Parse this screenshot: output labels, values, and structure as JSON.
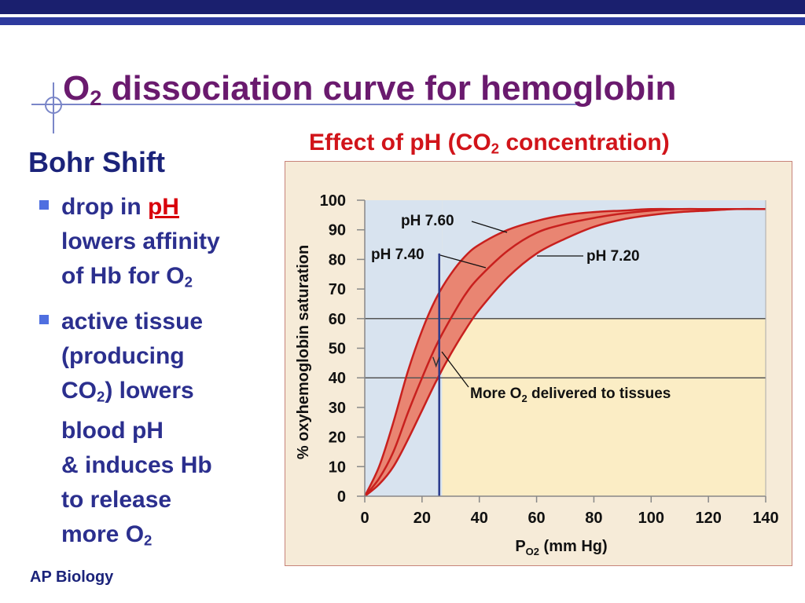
{
  "slide": {
    "title_main": "O",
    "title_sub": "2",
    "title_rest": " dissociation curve for hemoglobin",
    "bohr_heading": "Bohr Shift",
    "footer": "AP Biology"
  },
  "bullets": [
    {
      "pre": "drop in ",
      "highlight": "pH",
      "line2": "lowers affinity",
      "line3_pre": "of Hb for O",
      "line3_sub": "2"
    },
    {
      "l1": "active tissue",
      "l2": "(producing",
      "l3_pre": "CO",
      "l3_sub": "2",
      "l3_post": ") lowers",
      "l4": "blood pH",
      "l5": "& induces Hb",
      "l6": "to release",
      "l7_pre": "more O",
      "l7_sub": "2"
    }
  ],
  "colors": {
    "title": "#6a1a6e",
    "heading": "#1b237a",
    "bullet_text": "#2b2f8e",
    "highlight": "#d8000b",
    "chart_title": "#d1141a",
    "curve": "#c8201e",
    "band": "#e98572",
    "plot_bg_blue": "#d8e3ef",
    "plot_bg_cream": "#fbedc5",
    "marker_line": "#2b3a8c"
  },
  "chart_data": {
    "type": "line",
    "title_pre": "Effect of pH (CO",
    "title_sub": "2",
    "title_post": " concentration)",
    "ylabel": "% oxyhemoglobin saturation",
    "xlabel_pre": "P",
    "xlabel_sub": "O2",
    "xlabel_post": " (mm Hg)",
    "xlim": [
      0,
      140
    ],
    "ylim": [
      0,
      100
    ],
    "x_ticks": [
      0,
      20,
      40,
      60,
      80,
      100,
      120,
      140
    ],
    "y_ticks": [
      0,
      10,
      20,
      30,
      40,
      50,
      60,
      70,
      80,
      90,
      100
    ],
    "hgrid_at": [
      40,
      60
    ],
    "blue_region_x_max": 27,
    "blue_region_y_min": 60,
    "marker_x": 26,
    "series": [
      {
        "name": "pH 7.60",
        "x": [
          0,
          5,
          10,
          15,
          20,
          25,
          30,
          35,
          40,
          50,
          60,
          70,
          80,
          90,
          100,
          110,
          120,
          130,
          140
        ],
        "y": [
          0,
          10,
          25,
          42,
          56,
          67,
          75,
          81,
          85,
          90,
          93,
          95,
          96,
          96.5,
          97,
          97,
          97,
          97,
          97
        ]
      },
      {
        "name": "pH 7.40",
        "x": [
          0,
          5,
          10,
          15,
          20,
          25,
          30,
          35,
          40,
          50,
          60,
          70,
          80,
          90,
          100,
          110,
          120,
          130,
          140
        ],
        "y": [
          0,
          6,
          15,
          28,
          40,
          51,
          60,
          68,
          74,
          83,
          89,
          92,
          94,
          95.5,
          96.5,
          97,
          97,
          97,
          97
        ]
      },
      {
        "name": "pH 7.20",
        "x": [
          0,
          5,
          10,
          15,
          20,
          25,
          30,
          35,
          40,
          50,
          60,
          70,
          80,
          90,
          100,
          110,
          120,
          130,
          140
        ],
        "y": [
          0,
          4,
          10,
          19,
          29,
          39,
          48,
          56,
          63,
          74,
          82,
          87,
          91,
          93.5,
          95,
          96,
          96.5,
          97,
          97
        ]
      }
    ],
    "annotations": [
      {
        "text": "pH 7.60",
        "series": 0
      },
      {
        "text": "pH 7.40",
        "series": 1
      },
      {
        "text": "pH 7.20",
        "series": 2
      },
      {
        "text_pre": "More O",
        "text_sub": "2",
        "text_post": " delivered to tissues"
      }
    ]
  }
}
